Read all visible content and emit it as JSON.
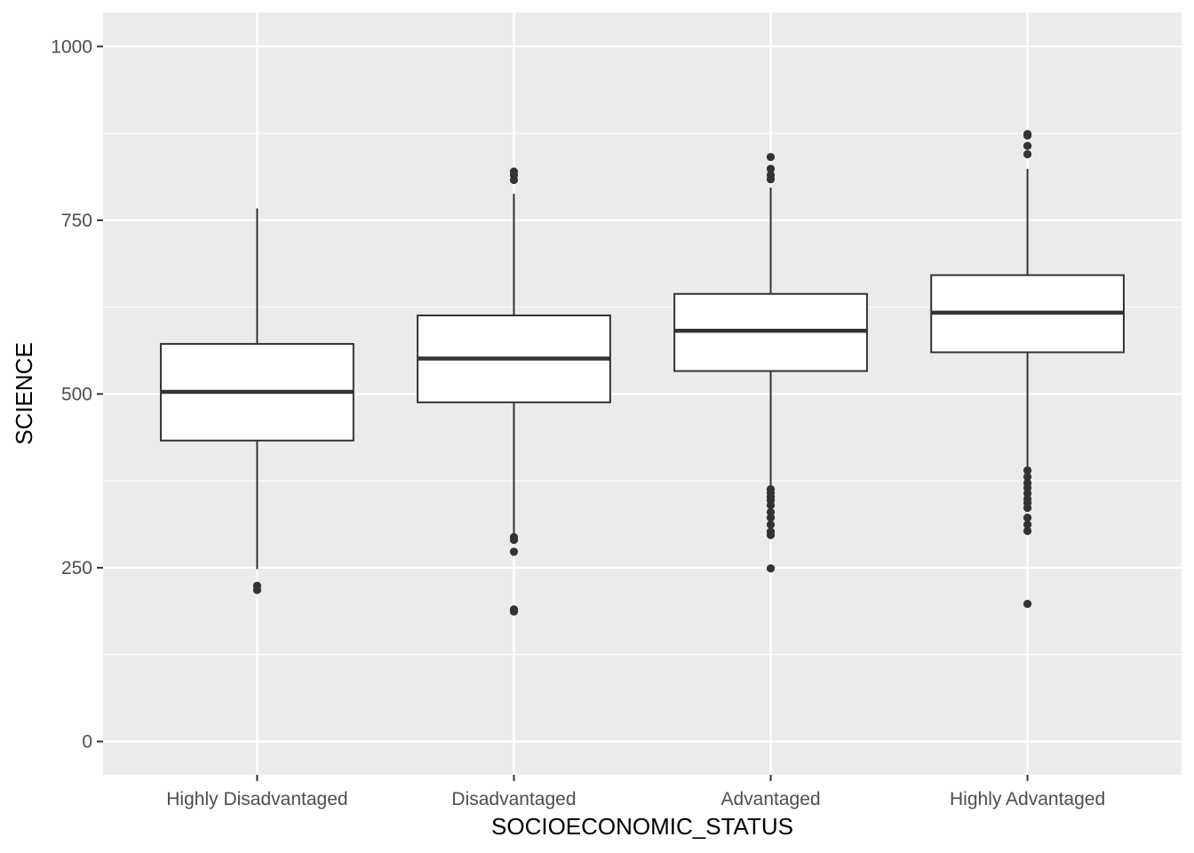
{
  "chart_data": {
    "type": "boxplot",
    "title": "",
    "xlabel": "SOCIOECONOMIC_STATUS",
    "ylabel": "SCIENCE",
    "ylim": [
      -48,
      1049
    ],
    "yticks": [
      0,
      250,
      500,
      750,
      1000
    ],
    "grid": true,
    "categories": [
      "Highly Disadvantaged",
      "Disadvantaged",
      "Advantaged",
      "Highly Advantaged"
    ],
    "boxes": [
      {
        "category": "Highly Disadvantaged",
        "whisker_low": 248,
        "q1": 433,
        "median": 503,
        "q3": 572,
        "whisker_high": 767,
        "outliers": [
          218,
          224
        ]
      },
      {
        "category": "Disadvantaged",
        "whisker_low": 298,
        "q1": 488,
        "median": 551,
        "q3": 613,
        "whisker_high": 788,
        "outliers": [
          187,
          190,
          273,
          290,
          294,
          808,
          815,
          820
        ]
      },
      {
        "category": "Advantaged",
        "whisker_low": 366,
        "q1": 533,
        "median": 591,
        "q3": 644,
        "whisker_high": 797,
        "outliers": [
          249,
          297,
          302,
          312,
          322,
          330,
          340,
          347,
          352,
          358,
          363,
          809,
          815,
          824,
          841
        ]
      },
      {
        "category": "Highly Advantaged",
        "whisker_low": 395,
        "q1": 560,
        "median": 617,
        "q3": 671,
        "whisker_high": 824,
        "outliers": [
          198,
          303,
          312,
          322,
          336,
          343,
          349,
          357,
          365,
          372,
          381,
          390,
          845,
          857,
          872,
          874
        ]
      }
    ]
  }
}
